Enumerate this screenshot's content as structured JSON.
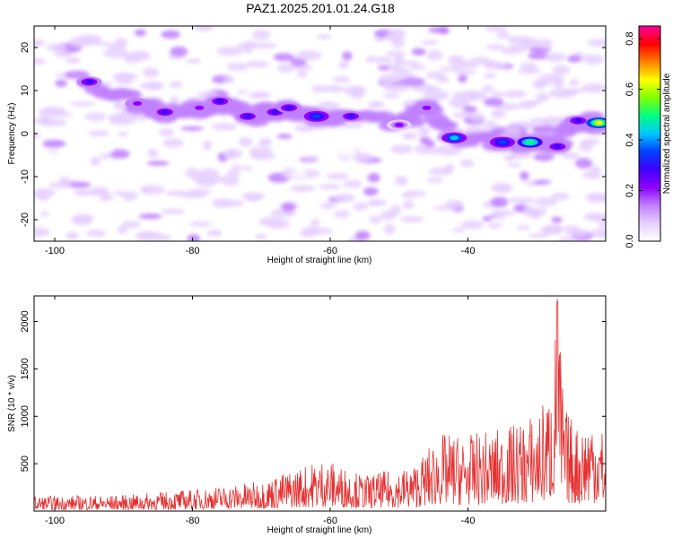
{
  "title": "PAZ1.2025.201.01.24.G18",
  "chart_data": [
    {
      "type": "heatmap",
      "xlabel": "Height of straight line (km)",
      "ylabel": "Frequency (Hz)",
      "xlim": [
        -103,
        -20
      ],
      "ylim": [
        -25,
        25
      ],
      "x_ticks": [
        -100,
        -80,
        -60,
        -40
      ],
      "y_ticks": [
        -20,
        -10,
        0,
        10,
        20
      ],
      "colorbar": {
        "label": "Normalized spectral amplitude",
        "range": [
          0,
          0.85
        ],
        "ticks": [
          0.0,
          0.2,
          0.4,
          0.6,
          0.8
        ],
        "colormap": [
          "#ffffff",
          "#e6d0ff",
          "#c080ff",
          "#8f00ff",
          "#4000ff",
          "#0040ff",
          "#00c8ff",
          "#00ff80",
          "#80ff00",
          "#ffff00",
          "#ff8000",
          "#ff0000",
          "#ff00a0"
        ]
      },
      "ridge": [
        {
          "x": -95,
          "y": 12,
          "amp": 0.25
        },
        {
          "x": -88,
          "y": 7,
          "amp": 0.2
        },
        {
          "x": -84,
          "y": 5,
          "amp": 0.28
        },
        {
          "x": -79,
          "y": 6,
          "amp": 0.22
        },
        {
          "x": -76,
          "y": 7.5,
          "amp": 0.3
        },
        {
          "x": -72,
          "y": 4,
          "amp": 0.28
        },
        {
          "x": -68,
          "y": 5,
          "amp": 0.3
        },
        {
          "x": -66,
          "y": 6,
          "amp": 0.3
        },
        {
          "x": -62,
          "y": 4,
          "amp": 0.35
        },
        {
          "x": -57,
          "y": 4,
          "amp": 0.3
        },
        {
          "x": -50,
          "y": 2,
          "amp": 0.18
        },
        {
          "x": -46,
          "y": 6,
          "amp": 0.22
        },
        {
          "x": -42,
          "y": -1,
          "amp": 0.4
        },
        {
          "x": -35,
          "y": -2,
          "amp": 0.35
        },
        {
          "x": -31,
          "y": -2,
          "amp": 0.5
        },
        {
          "x": -27,
          "y": -3,
          "amp": 0.3
        },
        {
          "x": -24,
          "y": 3,
          "amp": 0.3
        },
        {
          "x": -21,
          "y": 2.5,
          "amp": 0.65
        }
      ]
    },
    {
      "type": "line",
      "xlabel": "Height of straight line (km)",
      "ylabel": "SNR (10 * v/v)",
      "xlim": [
        -103,
        -20
      ],
      "ylim": [
        0,
        2270
      ],
      "x_ticks": [
        -100,
        -80,
        -60,
        -40
      ],
      "y_ticks": [
        500,
        1000,
        1500,
        2000
      ],
      "color": "#e53030",
      "envelope": [
        {
          "x": -103,
          "y": 160
        },
        {
          "x": -90,
          "y": 170
        },
        {
          "x": -80,
          "y": 230
        },
        {
          "x": -70,
          "y": 320
        },
        {
          "x": -61,
          "y": 560
        },
        {
          "x": -55,
          "y": 380
        },
        {
          "x": -48,
          "y": 480
        },
        {
          "x": -44,
          "y": 820
        },
        {
          "x": -40,
          "y": 800
        },
        {
          "x": -34,
          "y": 900
        },
        {
          "x": -30,
          "y": 1050
        },
        {
          "x": -28,
          "y": 1300
        },
        {
          "x": -27,
          "y": 2250
        },
        {
          "x": -26,
          "y": 1100
        },
        {
          "x": -24,
          "y": 900
        },
        {
          "x": -22,
          "y": 1100
        },
        {
          "x": -20,
          "y": 800
        }
      ]
    }
  ]
}
